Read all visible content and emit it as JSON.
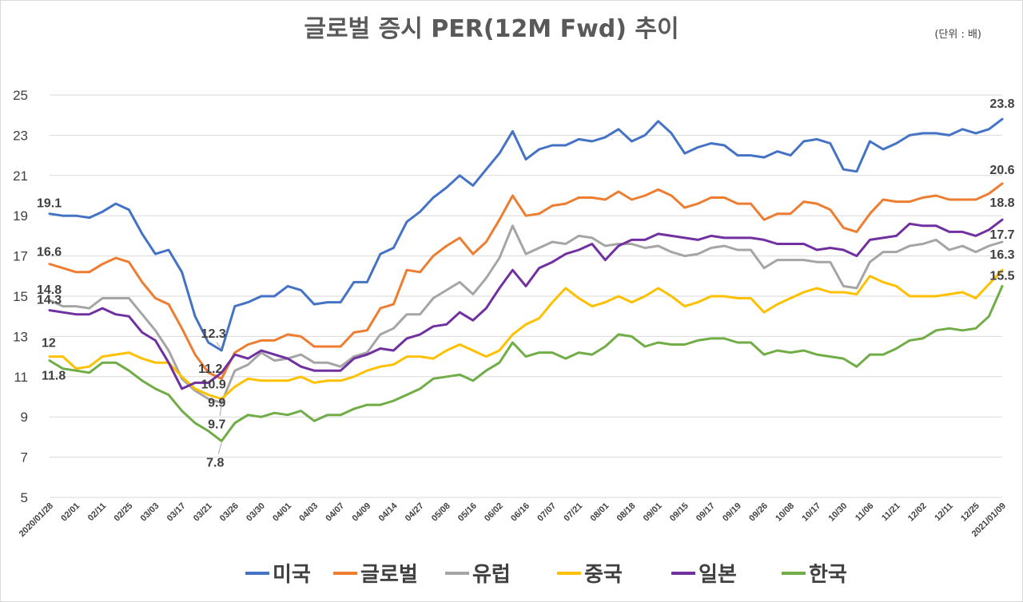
{
  "chart_data": {
    "type": "line",
    "title": "글로벌 증시 PER(12M Fwd) 추이",
    "unit_note": "(단위 : 배)",
    "ylim": [
      5,
      25
    ],
    "yticks": [
      5,
      7,
      9,
      11,
      13,
      15,
      17,
      19,
      21,
      23,
      25
    ],
    "grid": "horizontal",
    "legend_position": "bottom",
    "x_tick_labels": [
      "2020/01/28",
      "02/01",
      "02/11",
      "02/25",
      "03/03",
      "03/17",
      "03/21",
      "03/26",
      "03/30",
      "04/01",
      "04/03",
      "04/07",
      "04/09",
      "04/14",
      "04/27",
      "05/08",
      "05/16",
      "06/02",
      "06/16",
      "07/07",
      "07/21",
      "08/01",
      "08/18",
      "09/01",
      "09/15",
      "09/17",
      "09/19",
      "09/26",
      "10/08",
      "10/17",
      "10/30",
      "11/06",
      "11/21",
      "12/02",
      "12/11",
      "12/25",
      "2021/01/09"
    ],
    "series": [
      {
        "name": "미국",
        "color": "#4472C4",
        "values": [
          19.1,
          19.0,
          19.0,
          18.9,
          19.2,
          19.6,
          19.3,
          18.1,
          17.1,
          17.3,
          16.2,
          14.0,
          12.7,
          12.3,
          14.5,
          14.7,
          15.0,
          15.0,
          15.5,
          15.3,
          14.6,
          14.7,
          14.7,
          15.7,
          15.7,
          17.1,
          17.4,
          18.7,
          19.2,
          19.9,
          20.4,
          21.0,
          20.5,
          21.3,
          22.1,
          23.2,
          21.8,
          22.3,
          22.5,
          22.5,
          22.8,
          22.7,
          22.9,
          23.3,
          22.7,
          23.0,
          23.7,
          23.1,
          22.1,
          22.4,
          22.6,
          22.5,
          22.0,
          22.0,
          21.9,
          22.2,
          22.0,
          22.7,
          22.8,
          22.6,
          21.3,
          21.2,
          22.7,
          22.3,
          22.6,
          23.0,
          23.1,
          23.1,
          23.0,
          23.3,
          23.1,
          23.3,
          23.8
        ]
      },
      {
        "name": "글로벌",
        "color": "#ED7D31",
        "values": [
          16.6,
          16.4,
          16.2,
          16.2,
          16.6,
          16.9,
          16.7,
          15.7,
          14.9,
          14.6,
          13.4,
          12.1,
          11.2,
          10.9,
          12.2,
          12.6,
          12.8,
          12.8,
          13.1,
          13.0,
          12.5,
          12.5,
          12.5,
          13.2,
          13.3,
          14.4,
          14.6,
          16.3,
          16.2,
          17.0,
          17.5,
          17.9,
          17.1,
          17.7,
          18.8,
          20.0,
          19.0,
          19.1,
          19.5,
          19.6,
          19.9,
          19.9,
          19.8,
          20.2,
          19.8,
          20.0,
          20.3,
          20.0,
          19.4,
          19.6,
          19.9,
          19.9,
          19.6,
          19.6,
          18.8,
          19.1,
          19.1,
          19.7,
          19.6,
          19.3,
          18.4,
          18.2,
          19.1,
          19.8,
          19.7,
          19.7,
          19.9,
          20.0,
          19.8,
          19.8,
          19.8,
          20.1,
          20.6
        ]
      },
      {
        "name": "유럽",
        "color": "#A5A5A5",
        "values": [
          14.8,
          14.5,
          14.5,
          14.4,
          14.9,
          14.9,
          14.9,
          14.1,
          13.3,
          12.3,
          10.9,
          10.3,
          9.9,
          9.7,
          11.3,
          11.6,
          12.2,
          11.8,
          11.9,
          12.1,
          11.7,
          11.7,
          11.5,
          12.0,
          12.2,
          13.1,
          13.4,
          14.1,
          14.1,
          14.9,
          15.3,
          15.7,
          15.1,
          15.9,
          16.9,
          18.5,
          17.1,
          17.4,
          17.7,
          17.6,
          18.0,
          17.9,
          17.5,
          17.6,
          17.6,
          17.4,
          17.5,
          17.2,
          17.0,
          17.1,
          17.4,
          17.5,
          17.3,
          17.3,
          16.4,
          16.8,
          16.8,
          16.8,
          16.7,
          16.7,
          15.5,
          15.4,
          16.7,
          17.2,
          17.2,
          17.5,
          17.6,
          17.8,
          17.3,
          17.5,
          17.2,
          17.5,
          17.7
        ]
      },
      {
        "name": "중국",
        "color": "#FFC000",
        "values": [
          12.0,
          12.0,
          11.4,
          11.5,
          12.0,
          12.1,
          12.2,
          11.9,
          11.7,
          11.7,
          11.0,
          10.4,
          10.1,
          9.9,
          10.5,
          10.9,
          10.8,
          10.8,
          10.8,
          11.0,
          10.7,
          10.8,
          10.8,
          11.0,
          11.3,
          11.5,
          11.6,
          12.0,
          12.0,
          11.9,
          12.3,
          12.6,
          12.3,
          12.0,
          12.3,
          13.1,
          13.6,
          13.9,
          14.7,
          15.4,
          14.9,
          14.5,
          14.7,
          15.0,
          14.7,
          15.0,
          15.4,
          15.0,
          14.5,
          14.7,
          15.0,
          15.0,
          14.9,
          14.9,
          14.2,
          14.6,
          14.9,
          15.2,
          15.4,
          15.2,
          15.2,
          15.1,
          16.0,
          15.7,
          15.5,
          15.0,
          15.0,
          15.0,
          15.1,
          15.2,
          14.9,
          15.6,
          16.3
        ]
      },
      {
        "name": "일본",
        "color": "#7030A0",
        "values": [
          14.3,
          14.2,
          14.1,
          14.1,
          14.4,
          14.1,
          14.0,
          13.2,
          12.8,
          11.7,
          10.4,
          10.7,
          10.7,
          11.2,
          12.1,
          11.9,
          12.3,
          12.1,
          11.9,
          11.5,
          11.3,
          11.3,
          11.3,
          11.9,
          12.1,
          12.4,
          12.3,
          12.9,
          13.1,
          13.5,
          13.6,
          14.2,
          13.8,
          14.4,
          15.4,
          16.3,
          15.5,
          16.4,
          16.7,
          17.1,
          17.3,
          17.6,
          16.8,
          17.5,
          17.8,
          17.8,
          18.1,
          18.0,
          17.9,
          17.8,
          18.0,
          17.9,
          17.9,
          17.9,
          17.8,
          17.6,
          17.6,
          17.6,
          17.3,
          17.4,
          17.3,
          17.0,
          17.8,
          17.9,
          18.0,
          18.6,
          18.5,
          18.5,
          18.2,
          18.2,
          18.0,
          18.3,
          18.8
        ]
      },
      {
        "name": "한국",
        "color": "#70AD47",
        "values": [
          11.8,
          11.4,
          11.3,
          11.2,
          11.7,
          11.7,
          11.3,
          10.8,
          10.4,
          10.1,
          9.3,
          8.7,
          8.3,
          7.8,
          8.7,
          9.1,
          9.0,
          9.2,
          9.1,
          9.3,
          8.8,
          9.1,
          9.1,
          9.4,
          9.6,
          9.6,
          9.8,
          10.1,
          10.4,
          10.9,
          11.0,
          11.1,
          10.8,
          11.3,
          11.7,
          12.7,
          12.0,
          12.2,
          12.2,
          11.9,
          12.2,
          12.1,
          12.5,
          13.1,
          13.0,
          12.5,
          12.7,
          12.6,
          12.6,
          12.8,
          12.9,
          12.9,
          12.7,
          12.7,
          12.1,
          12.3,
          12.2,
          12.3,
          12.1,
          12.0,
          11.9,
          11.5,
          12.1,
          12.1,
          12.4,
          12.8,
          12.9,
          13.3,
          13.4,
          13.3,
          13.4,
          14.0,
          15.5
        ]
      }
    ],
    "data_labels": [
      {
        "series": 0,
        "index": 0,
        "text": "19.1"
      },
      {
        "series": 1,
        "index": 0,
        "text": "16.6"
      },
      {
        "series": 2,
        "index": 0,
        "text": "14.8"
      },
      {
        "series": 4,
        "index": 0,
        "text": "14.3"
      },
      {
        "series": 3,
        "index": 0,
        "text": "12"
      },
      {
        "series": 5,
        "index": 0,
        "text": "11.8"
      },
      {
        "series": 0,
        "index": 13,
        "text": "12.3"
      },
      {
        "series": 1,
        "index": 13,
        "text": "10.9"
      },
      {
        "series": 4,
        "index": 13,
        "text": "11.2"
      },
      {
        "series": 3,
        "index": 13,
        "text": "9.9"
      },
      {
        "series": 2,
        "index": 13,
        "text": "9.7"
      },
      {
        "series": 5,
        "index": 13,
        "text": "7.8"
      },
      {
        "series": 0,
        "index": 72,
        "text": "23.8"
      },
      {
        "series": 1,
        "index": 72,
        "text": "20.6"
      },
      {
        "series": 4,
        "index": 72,
        "text": "18.8"
      },
      {
        "series": 2,
        "index": 72,
        "text": "17.7"
      },
      {
        "series": 3,
        "index": 72,
        "text": "16.3"
      },
      {
        "series": 5,
        "index": 72,
        "text": "15.5"
      }
    ]
  }
}
